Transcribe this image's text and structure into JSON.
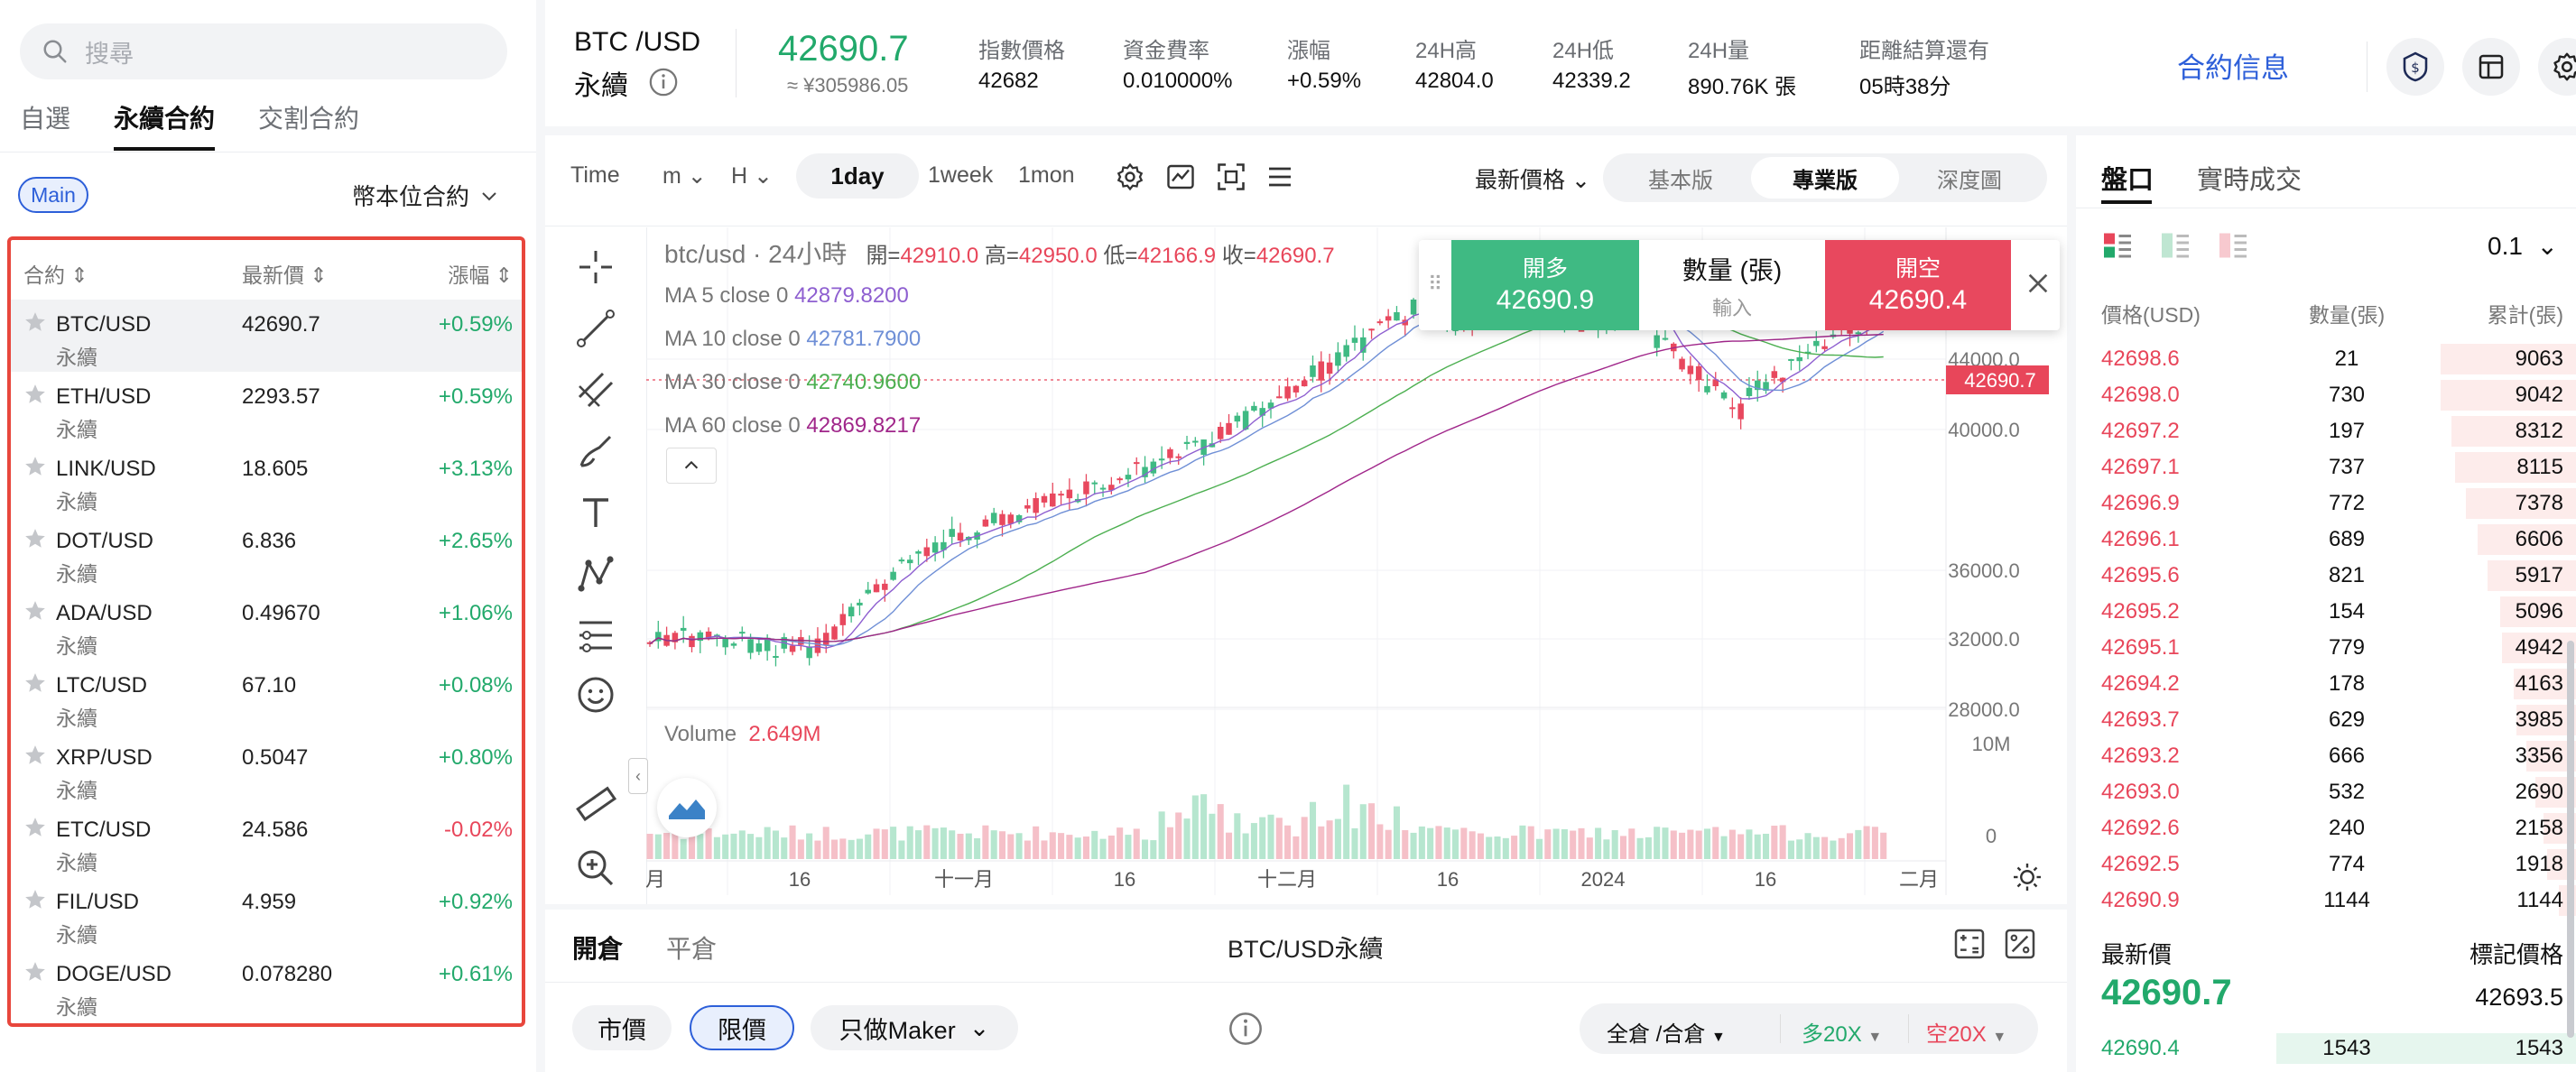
{
  "sidebar": {
    "search_placeholder": "搜尋",
    "tabs": [
      {
        "label": "自選"
      },
      {
        "label": "永續合約"
      },
      {
        "label": "交割合約"
      }
    ],
    "main_label": "Main",
    "coin_select": "幣本位合約",
    "headers": {
      "symbol": "合約",
      "price": "最新價",
      "change": "漲幅"
    },
    "markets": [
      {
        "symbol": "BTC/USD",
        "sub": "永續",
        "price": "42690.7",
        "change": "+0.59%",
        "dir": "up"
      },
      {
        "symbol": "ETH/USD",
        "sub": "永續",
        "price": "2293.57",
        "change": "+0.59%",
        "dir": "up"
      },
      {
        "symbol": "LINK/USD",
        "sub": "永續",
        "price": "18.605",
        "change": "+3.13%",
        "dir": "up"
      },
      {
        "symbol": "DOT/USD",
        "sub": "永續",
        "price": "6.836",
        "change": "+2.65%",
        "dir": "up"
      },
      {
        "symbol": "ADA/USD",
        "sub": "永續",
        "price": "0.49670",
        "change": "+1.06%",
        "dir": "up"
      },
      {
        "symbol": "LTC/USD",
        "sub": "永續",
        "price": "67.10",
        "change": "+0.08%",
        "dir": "up"
      },
      {
        "symbol": "XRP/USD",
        "sub": "永續",
        "price": "0.5047",
        "change": "+0.80%",
        "dir": "up"
      },
      {
        "symbol": "ETC/USD",
        "sub": "永續",
        "price": "24.586",
        "change": "-0.02%",
        "dir": "down"
      },
      {
        "symbol": "FIL/USD",
        "sub": "永續",
        "price": "4.959",
        "change": "+0.92%",
        "dir": "up"
      },
      {
        "symbol": "DOGE/USD",
        "sub": "永續",
        "price": "0.078280",
        "change": "+0.61%",
        "dir": "up"
      }
    ]
  },
  "header": {
    "pair": "BTC /USD",
    "type": "永續",
    "price": "42690.7",
    "price_cny": "≈ ¥305986.05",
    "stats": [
      {
        "label": "指數價格",
        "value": "42682"
      },
      {
        "label": "資金費率",
        "value": "0.010000%"
      },
      {
        "label": "漲幅",
        "value": "+0.59%"
      },
      {
        "label": "24H高",
        "value": "42804.0"
      },
      {
        "label": "24H低",
        "value": "42339.2"
      },
      {
        "label": "24H量",
        "value": "890.76K 張"
      },
      {
        "label": "距離結算還有",
        "value": "05時38分"
      }
    ],
    "info_link": "合約信息"
  },
  "toolbar": {
    "time": "Time",
    "m": "m",
    "h": "H",
    "day": "1day",
    "week": "1week",
    "mon": "1mon",
    "price_type": "最新價格",
    "views": [
      "基本版",
      "專業版",
      "深度圖"
    ]
  },
  "chart": {
    "title": "btc/usd · 24小時",
    "ohlc": {
      "open_label": "開=",
      "open": "42910.0",
      "high_label": "高=",
      "high": "42950.0",
      "low_label": "低=",
      "low": "42166.9",
      "close_label": "收=",
      "close": "42690.7"
    },
    "ma": [
      {
        "label": "MA 5 close 0",
        "value": "42879.8200",
        "color": "#8e5fd0"
      },
      {
        "label": "MA 10 close 0",
        "value": "42781.7900",
        "color": "#6f8fd6"
      },
      {
        "label": "MA 30 close 0",
        "value": "42740.9600",
        "color": "#4caf50"
      },
      {
        "label": "MA 60 close 0",
        "value": "42869.8217",
        "color": "#a0268a"
      }
    ],
    "volume_label": "Volume",
    "volume_value": "2.649M",
    "price_ticks": [
      "44000.0",
      "40000.0",
      "36000.0",
      "32000.0",
      "28000.0"
    ],
    "price_tag": "42690.7",
    "vol_ticks": [
      "10M",
      "0"
    ],
    "x_labels": [
      "月",
      "16",
      "十一月",
      "16",
      "十二月",
      "16",
      "2024",
      "16",
      "二月"
    ]
  },
  "order_box": {
    "buy_label": "開多",
    "buy_price": "42690.9",
    "qty_label": "數量 (張)",
    "qty_placeholder": "輸入",
    "sell_label": "開空",
    "sell_price": "42690.4"
  },
  "bottom": {
    "tab_open": "開倉",
    "tab_close": "平倉",
    "pair": "BTC/USD永續",
    "market": "市價",
    "limit": "限價",
    "maker": "只做Maker",
    "margin": "全倉 /合倉",
    "long_lev": "多20X",
    "short_lev": "空20X"
  },
  "book": {
    "tab_book": "盤口",
    "tab_trades": "實時成交",
    "precision": "0.1",
    "headers": {
      "price": "價格(USD)",
      "qty": "數量(張)",
      "total": "累計(張)"
    },
    "asks": [
      {
        "p": "42698.6",
        "q": "21",
        "c": "9063",
        "w": 1.0
      },
      {
        "p": "42698.0",
        "q": "730",
        "c": "9042",
        "w": 0.997
      },
      {
        "p": "42697.2",
        "q": "197",
        "c": "8312",
        "w": 0.917
      },
      {
        "p": "42697.1",
        "q": "737",
        "c": "8115",
        "w": 0.895
      },
      {
        "p": "42696.9",
        "q": "772",
        "c": "7378",
        "w": 0.814
      },
      {
        "p": "42696.1",
        "q": "689",
        "c": "6606",
        "w": 0.729
      },
      {
        "p": "42695.6",
        "q": "821",
        "c": "5917",
        "w": 0.653
      },
      {
        "p": "42695.2",
        "q": "154",
        "c": "5096",
        "w": 0.562
      },
      {
        "p": "42695.1",
        "q": "779",
        "c": "4942",
        "w": 0.545
      },
      {
        "p": "42694.2",
        "q": "178",
        "c": "4163",
        "w": 0.459
      },
      {
        "p": "42693.7",
        "q": "629",
        "c": "3985",
        "w": 0.44
      },
      {
        "p": "42693.2",
        "q": "666",
        "c": "3356",
        "w": 0.37
      },
      {
        "p": "42693.0",
        "q": "532",
        "c": "2690",
        "w": 0.297
      },
      {
        "p": "42692.6",
        "q": "240",
        "c": "2158",
        "w": 0.238
      },
      {
        "p": "42692.5",
        "q": "774",
        "c": "1918",
        "w": 0.212
      },
      {
        "p": "42690.9",
        "q": "1144",
        "c": "1144",
        "w": 0.126
      }
    ],
    "last_label": "最新價",
    "mark_label": "標記價格",
    "last_price": "42690.7",
    "mark_price": "42693.5",
    "bid": {
      "p": "42690.4",
      "q": "1543",
      "c": "1543"
    }
  },
  "colors": {
    "up": "#22a96b",
    "down": "#e8465a",
    "accent": "#2d5fd9"
  }
}
